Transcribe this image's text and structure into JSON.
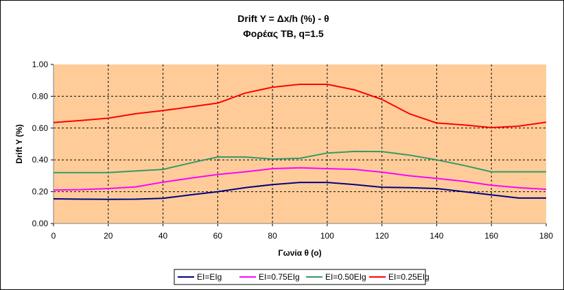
{
  "chart_data": {
    "type": "line",
    "title": "Drift Y = Δx/h (%) - θ",
    "subtitle": "Φορέας ΤΒ, q=1.5",
    "xlabel": "Γωνία θ (ο)",
    "ylabel": "Drift Y (%)",
    "xlim": [
      0,
      180
    ],
    "ylim": [
      0,
      1.0
    ],
    "x_ticks": [
      "0",
      "20",
      "40",
      "60",
      "80",
      "100",
      "120",
      "140",
      "160",
      "180"
    ],
    "y_ticks": [
      "0.00",
      "0.20",
      "0.40",
      "0.60",
      "0.80",
      "1.00"
    ],
    "grid": true,
    "legend_position": "bottom",
    "plot_background": "#FFCC99",
    "x": [
      0,
      10,
      20,
      30,
      40,
      50,
      60,
      70,
      80,
      90,
      100,
      110,
      120,
      130,
      140,
      150,
      160,
      170,
      180
    ],
    "series": [
      {
        "name": "EI=EIg",
        "color": "#000080",
        "values": [
          0.155,
          0.153,
          0.152,
          0.153,
          0.158,
          0.18,
          0.2,
          0.225,
          0.245,
          0.258,
          0.258,
          0.245,
          0.228,
          0.225,
          0.22,
          0.2,
          0.18,
          0.16,
          0.16
        ]
      },
      {
        "name": "EI=0.75EIg",
        "color": "#FF00FF",
        "values": [
          0.21,
          0.213,
          0.22,
          0.23,
          0.26,
          0.285,
          0.308,
          0.325,
          0.345,
          0.35,
          0.345,
          0.34,
          0.323,
          0.3,
          0.283,
          0.265,
          0.24,
          0.225,
          0.215
        ]
      },
      {
        "name": "EI=0.50EIg",
        "color": "#339966",
        "values": [
          0.32,
          0.32,
          0.32,
          0.33,
          0.34,
          0.38,
          0.418,
          0.418,
          0.405,
          0.41,
          0.443,
          0.453,
          0.452,
          0.43,
          0.4,
          0.365,
          0.325,
          0.325,
          0.325
        ]
      },
      {
        "name": "EI=0.25EIg",
        "color": "#FF0000",
        "values": [
          0.635,
          0.648,
          0.662,
          0.69,
          0.71,
          0.733,
          0.757,
          0.82,
          0.857,
          0.875,
          0.875,
          0.84,
          0.78,
          0.69,
          0.632,
          0.62,
          0.603,
          0.612,
          0.637
        ]
      }
    ]
  }
}
